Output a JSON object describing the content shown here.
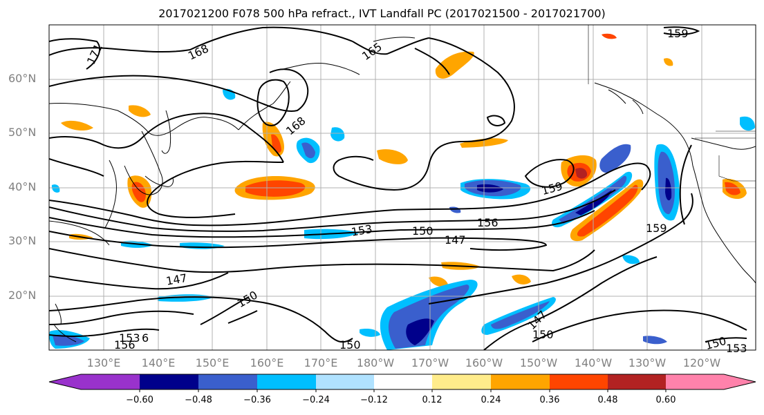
{
  "title": "2017021200 F078 500 hPa refract., IVT Landfall PC (2017021500 - 2017021700)",
  "lat_labels": [
    "60°N",
    "50°N",
    "40°N",
    "30°N",
    "20°N"
  ],
  "lon_labels": [
    "130°E",
    "140°E",
    "150°E",
    "160°E",
    "170°E",
    "180°W",
    "170°W",
    "160°W",
    "150°W",
    "140°W",
    "130°W",
    "120°W"
  ],
  "contour_labels": [
    "171",
    "168",
    "165",
    "168",
    "159",
    "159",
    "153",
    "150",
    "156",
    "147",
    "147",
    "150",
    "153",
    "156",
    "150",
    "147",
    "150",
    "159",
    "150",
    "153",
    "6"
  ],
  "colorbar": {
    "ticks": [
      "−0.60",
      "−0.48",
      "−0.36",
      "−0.24",
      "−0.12",
      "0.12",
      "0.24",
      "0.36",
      "0.48",
      "0.60"
    ],
    "colors": [
      "#9932cc",
      "#00008b",
      "#3a5fcd",
      "#00bfff",
      "#b0e2ff",
      "#ffffff",
      "#ffec8b",
      "#ffa500",
      "#ff4500",
      "#b22222",
      "#ff82ab"
    ]
  }
}
